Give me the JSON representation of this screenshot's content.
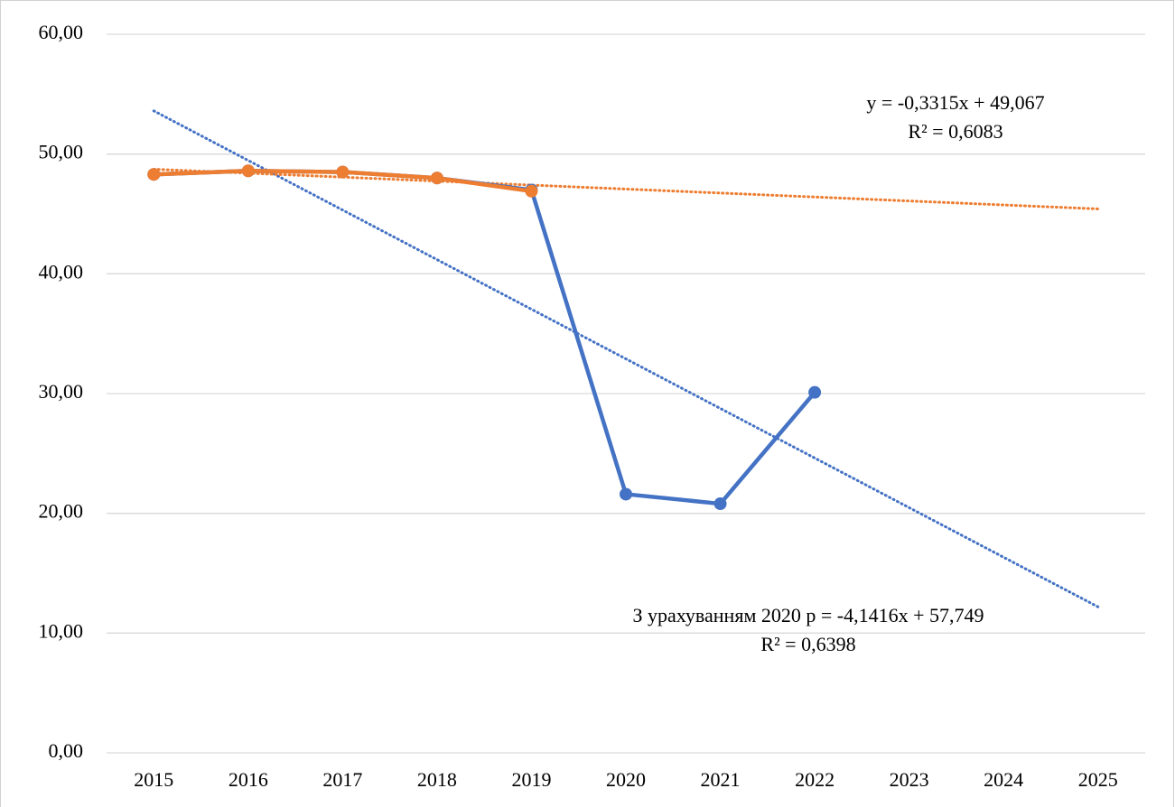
{
  "chart_data": {
    "type": "line",
    "categories": [
      "2015",
      "2016",
      "2017",
      "2018",
      "2019",
      "2020",
      "2021",
      "2022",
      "2023",
      "2024",
      "2025"
    ],
    "series": [
      {
        "name": "З урахуванням 2020 р",
        "color": "#4472c4",
        "values": [
          48.3,
          48.6,
          48.5,
          48.0,
          47.0,
          21.6,
          20.8,
          30.1,
          null,
          null,
          null
        ]
      },
      {
        "name": "y",
        "color": "#ed7d31",
        "values": [
          48.3,
          48.6,
          48.5,
          48.0,
          46.9,
          null,
          null,
          null,
          null,
          null,
          null
        ]
      }
    ],
    "trendlines": [
      {
        "color": "#4472c4",
        "slope": -4.1416,
        "intercept": 57.749,
        "equation": "З урахуванням 2020 р = -4,1416x + 57,749",
        "r2": "R² = 0,6398"
      },
      {
        "color": "#ed7d31",
        "slope": -0.3315,
        "intercept": 49.067,
        "equation": "y = -0,3315x + 49,067",
        "r2": "R² = 0,6083"
      }
    ],
    "ylim": [
      0,
      60
    ],
    "yticks": [
      {
        "value": 0,
        "label": "0,00"
      },
      {
        "value": 10,
        "label": "10,00"
      },
      {
        "value": 20,
        "label": "20,00"
      },
      {
        "value": 30,
        "label": "30,00"
      },
      {
        "value": 40,
        "label": "40,00"
      },
      {
        "value": 50,
        "label": "50,00"
      },
      {
        "value": 60,
        "label": "60,00"
      }
    ],
    "grid": true
  }
}
